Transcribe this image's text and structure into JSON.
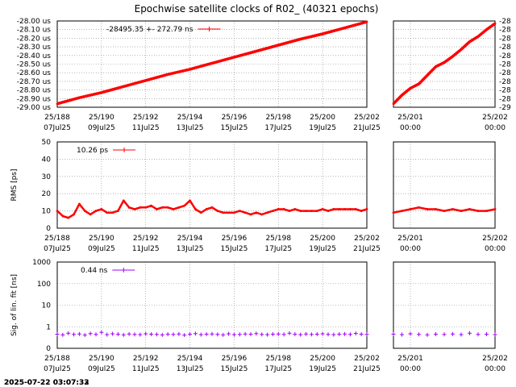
{
  "title": "Epochwise satellite clocks of R02_ (40321 epochs)",
  "timestamp": "2025-07-22 03:07:32",
  "timestamp_shadow": "2025-07-22 03:07:33",
  "colors": {
    "clock": "#ff0000",
    "rms": "#ff0000",
    "sig": "#a000ff",
    "grid": "#888888"
  },
  "chart_data": [
    {
      "type": "line",
      "id": "clock-main",
      "ylabel": "",
      "ylim": [
        -29.0,
        -28.0
      ],
      "yticks": [
        -29.0,
        -28.9,
        -28.8,
        -28.7,
        -28.6,
        -28.5,
        -28.4,
        -28.3,
        -28.2,
        -28.1,
        -28.0
      ],
      "ytick_labels": [
        "-29.00 us",
        "-28.90 us",
        "-28.80 us",
        "-28.70 us",
        "-28.60 us",
        "-28.50 us",
        "-28.40 us",
        "-28.30 us",
        "-28.20 us",
        "-28.10 us",
        "-28.00 us"
      ],
      "xlim": [
        188,
        202
      ],
      "xticks": [
        188,
        190,
        192,
        194,
        196,
        198,
        200,
        202
      ],
      "xtick_labels": [
        [
          "25/188",
          "07Jul25"
        ],
        [
          "25/190",
          "09Jul25"
        ],
        [
          "25/192",
          "11Jul25"
        ],
        [
          "25/194",
          "13Jul25"
        ],
        [
          "25/196",
          "15Jul25"
        ],
        [
          "25/198",
          "17Jul25"
        ],
        [
          "25/200",
          "19Jul25"
        ],
        [
          "25/202",
          "21Jul25"
        ]
      ],
      "legend": {
        "text": "-28495.35 +-    272.79 ns"
      },
      "x": [
        188,
        189,
        190,
        191,
        192,
        193,
        194,
        195,
        196,
        197,
        198,
        199,
        200,
        201,
        202
      ],
      "y": [
        -28.96,
        -28.89,
        -28.83,
        -28.76,
        -28.69,
        -28.62,
        -28.56,
        -28.49,
        -28.42,
        -28.35,
        -28.28,
        -28.21,
        -28.15,
        -28.08,
        -28.01
      ]
    },
    {
      "type": "line",
      "id": "clock-zoom",
      "ylim": [
        -29.0,
        -28.0
      ],
      "yticks": [
        -29.0,
        -28.9,
        -28.8,
        -28.7,
        -28.6,
        -28.5,
        -28.4,
        -28.3,
        -28.2,
        -28.1,
        -28.0
      ],
      "ytick_labels": [
        "-29",
        "-28",
        "-28",
        "-28",
        "-28",
        "-28",
        "-28",
        "-28",
        "-28",
        "-28",
        "-28"
      ],
      "xlim": [
        200.8,
        202
      ],
      "xticks": [
        201,
        202
      ],
      "xtick_labels": [
        [
          "25/201",
          "00:00"
        ],
        [
          "25/202",
          "00:00"
        ]
      ],
      "x": [
        200.8,
        200.9,
        201.0,
        201.1,
        201.2,
        201.3,
        201.4,
        201.5,
        201.6,
        201.7,
        201.8,
        201.9,
        202.0
      ],
      "y": [
        -28.96,
        -28.86,
        -28.78,
        -28.73,
        -28.63,
        -28.53,
        -28.48,
        -28.41,
        -28.33,
        -28.24,
        -28.18,
        -28.1,
        -28.03
      ]
    },
    {
      "type": "line",
      "id": "rms-main",
      "ylabel": "RMS [ps]",
      "ylim": [
        0,
        50
      ],
      "yticks": [
        0,
        10,
        20,
        30,
        40,
        50
      ],
      "ytick_labels": [
        "0",
        "10",
        "20",
        "30",
        "40",
        "50"
      ],
      "xlim": [
        188,
        202
      ],
      "xticks": [
        188,
        190,
        192,
        194,
        196,
        198,
        200,
        202
      ],
      "xtick_labels": [
        [
          "25/188",
          "07Jul25"
        ],
        [
          "25/190",
          "09Jul25"
        ],
        [
          "25/192",
          "11Jul25"
        ],
        [
          "25/194",
          "13Jul25"
        ],
        [
          "25/196",
          "15Jul25"
        ],
        [
          "25/198",
          "17Jul25"
        ],
        [
          "25/200",
          "19Jul25"
        ],
        [
          "25/202",
          "21Jul25"
        ]
      ],
      "legend": {
        "text": "10.26 ps"
      },
      "x": [
        188.0,
        188.25,
        188.5,
        188.75,
        189.0,
        189.25,
        189.5,
        189.75,
        190.0,
        190.25,
        190.5,
        190.75,
        191.0,
        191.25,
        191.5,
        191.75,
        192.0,
        192.25,
        192.5,
        192.75,
        193.0,
        193.25,
        193.5,
        193.75,
        194.0,
        194.25,
        194.5,
        194.75,
        195.0,
        195.25,
        195.5,
        195.75,
        196.0,
        196.25,
        196.5,
        196.75,
        197.0,
        197.25,
        197.5,
        197.75,
        198.0,
        198.25,
        198.5,
        198.75,
        199.0,
        199.25,
        199.5,
        199.75,
        200.0,
        200.25,
        200.5,
        200.75,
        201.0,
        201.25,
        201.5,
        201.75,
        202.0
      ],
      "y": [
        10,
        7,
        6,
        8,
        14,
        10,
        8,
        10,
        11,
        9,
        9,
        10,
        16,
        12,
        11,
        12,
        12,
        13,
        11,
        12,
        12,
        11,
        12,
        13,
        16,
        11,
        9,
        11,
        12,
        10,
        9,
        9,
        9,
        10,
        9,
        8,
        9,
        8,
        9,
        10,
        11,
        11,
        10,
        11,
        10,
        10,
        10,
        10,
        11,
        10,
        11,
        11,
        11,
        11,
        11,
        10,
        11
      ]
    },
    {
      "type": "line",
      "id": "rms-zoom",
      "ylim": [
        0,
        50
      ],
      "xlim": [
        200.8,
        202
      ],
      "xticks": [
        201,
        202
      ],
      "xtick_labels": [
        [
          "25/201",
          "00:00"
        ],
        [
          "25/202",
          "00:00"
        ]
      ],
      "x": [
        200.8,
        200.9,
        201.0,
        201.1,
        201.2,
        201.3,
        201.4,
        201.5,
        201.6,
        201.7,
        201.8,
        201.9,
        202.0
      ],
      "y": [
        9,
        10,
        11,
        12,
        11,
        11,
        10,
        11,
        10,
        11,
        10,
        10,
        11
      ]
    },
    {
      "type": "scatter",
      "id": "sig-main",
      "ylabel": "Sig. of lin. fit [ns]",
      "yscale": "log",
      "ylim": [
        0.1,
        1000
      ],
      "yticks": [
        0.1,
        1,
        10,
        100,
        1000
      ],
      "ytick_labels": [
        "0",
        "1",
        "10",
        "100",
        "1000"
      ],
      "xlim": [
        188,
        202
      ],
      "xticks": [
        188,
        190,
        192,
        194,
        196,
        198,
        200,
        202
      ],
      "xtick_labels": [
        [
          "25/188",
          "07Jul25"
        ],
        [
          "25/190",
          "09Jul25"
        ],
        [
          "25/192",
          "11Jul25"
        ],
        [
          "25/194",
          "13Jul25"
        ],
        [
          "25/196",
          "15Jul25"
        ],
        [
          "25/198",
          "17Jul25"
        ],
        [
          "25/200",
          "19Jul25"
        ],
        [
          "25/202",
          "21Jul25"
        ]
      ],
      "legend": {
        "text": "0.44 ns"
      },
      "x": [
        188.0,
        188.25,
        188.5,
        188.75,
        189.0,
        189.25,
        189.5,
        189.75,
        190.0,
        190.25,
        190.5,
        190.75,
        191.0,
        191.25,
        191.5,
        191.75,
        192.0,
        192.25,
        192.5,
        192.75,
        193.0,
        193.25,
        193.5,
        193.75,
        194.0,
        194.25,
        194.5,
        194.75,
        195.0,
        195.25,
        195.5,
        195.75,
        196.0,
        196.25,
        196.5,
        196.75,
        197.0,
        197.25,
        197.5,
        197.75,
        198.0,
        198.25,
        198.5,
        198.75,
        199.0,
        199.25,
        199.5,
        199.75,
        200.0,
        200.25,
        200.5,
        200.75,
        201.0,
        201.25,
        201.5,
        201.75,
        202.0
      ],
      "y": [
        0.45,
        0.42,
        0.5,
        0.44,
        0.46,
        0.41,
        0.48,
        0.44,
        0.55,
        0.43,
        0.47,
        0.45,
        0.42,
        0.46,
        0.44,
        0.43,
        0.47,
        0.45,
        0.44,
        0.42,
        0.45,
        0.44,
        0.46,
        0.41,
        0.45,
        0.48,
        0.43,
        0.45,
        0.46,
        0.44,
        0.42,
        0.47,
        0.43,
        0.44,
        0.46,
        0.45,
        0.48,
        0.44,
        0.43,
        0.45,
        0.46,
        0.44,
        0.5,
        0.45,
        0.43,
        0.46,
        0.44,
        0.45,
        0.47,
        0.44,
        0.43,
        0.45,
        0.46,
        0.44,
        0.49,
        0.45,
        0.44
      ]
    },
    {
      "type": "scatter",
      "id": "sig-zoom",
      "yscale": "log",
      "ylim": [
        0.1,
        1000
      ],
      "xlim": [
        200.8,
        202
      ],
      "xticks": [
        201,
        202
      ],
      "xtick_labels": [
        [
          "25/201",
          "00:00"
        ],
        [
          "25/202",
          "00:00"
        ]
      ],
      "x": [
        200.8,
        200.9,
        201.0,
        201.1,
        201.2,
        201.3,
        201.4,
        201.5,
        201.6,
        201.7,
        201.8,
        201.9,
        202.0
      ],
      "y": [
        0.45,
        0.43,
        0.47,
        0.44,
        0.42,
        0.45,
        0.44,
        0.46,
        0.43,
        0.5,
        0.44,
        0.45,
        0.43
      ]
    }
  ]
}
